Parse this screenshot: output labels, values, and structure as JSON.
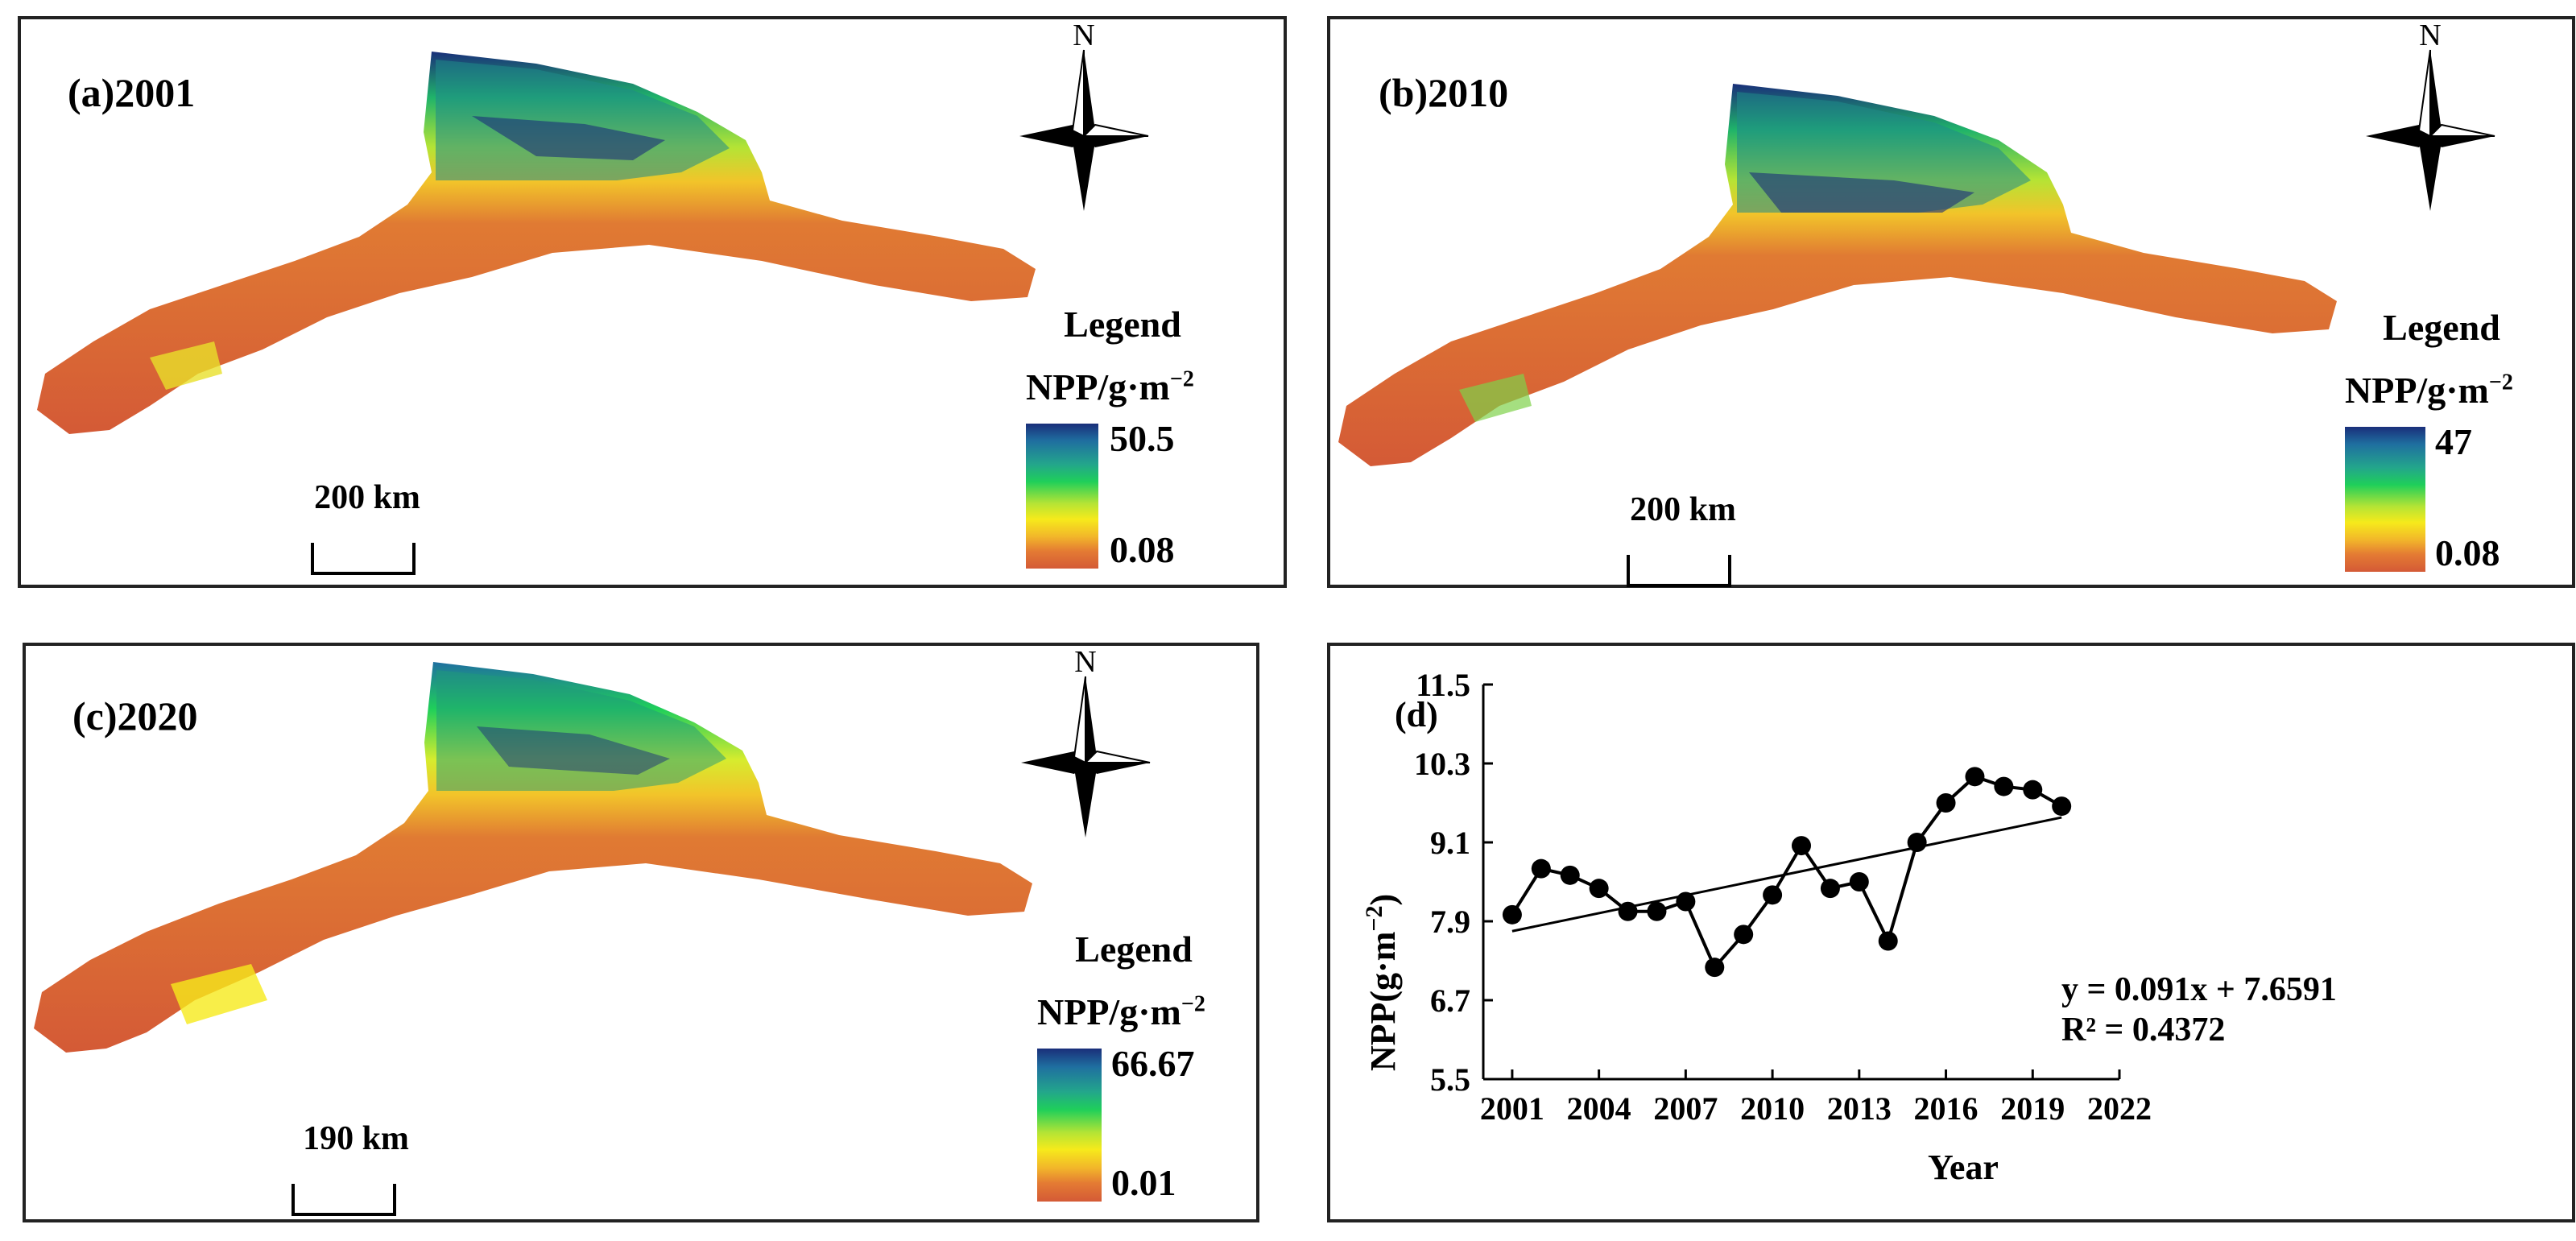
{
  "panels": {
    "a": {
      "title": "(a)2001",
      "north": "N",
      "legend_title": "Legend",
      "legend_unit": "NPP/g·m",
      "legend_unit_exp": "−2",
      "legend_max": "50.5",
      "legend_min": "0.08",
      "scale_label": "200  km"
    },
    "b": {
      "title": "(b)2010",
      "north": "N",
      "legend_title": "Legend",
      "legend_unit": "NPP/g·m",
      "legend_unit_exp": "−2",
      "legend_max": "47",
      "legend_min": "0.08",
      "scale_label": "200  km"
    },
    "c": {
      "title": "(c)2020",
      "north": "N",
      "legend_title": "Legend",
      "legend_unit": "NPP/g·m",
      "legend_unit_exp": "−2",
      "legend_max": "66.67",
      "legend_min": "0.01",
      "scale_label": "190  km"
    }
  },
  "colors": {
    "npp_high": "#1a2f7a",
    "npp_mid": "#1fcf5a",
    "npp_low_mid": "#f6ea1b",
    "npp_low": "#d45a36",
    "frame": "#222222"
  },
  "chart_data": {
    "type": "line",
    "panel_label": "(d)",
    "xlabel": "Year",
    "ylabel": "NPP(g·m",
    "ylabel_exp": "−2",
    "ylabel_close": ")",
    "xlim": [
      2000,
      2022
    ],
    "ylim": [
      5.5,
      11.5
    ],
    "xticks": [
      2001,
      2004,
      2007,
      2010,
      2013,
      2016,
      2019,
      2022
    ],
    "yticks": [
      "5.5",
      "6.7",
      "7.9",
      "9.1",
      "10.3",
      "11.5"
    ],
    "grid": false,
    "series": [
      {
        "x": [
          2001,
          2002,
          2003,
          2004,
          2005,
          2006,
          2007,
          2008,
          2009,
          2010,
          2011,
          2012,
          2013,
          2014,
          2015,
          2016,
          2017,
          2018,
          2019,
          2020
        ],
        "values": [
          8.0,
          8.7,
          8.6,
          8.4,
          8.05,
          8.05,
          8.2,
          7.2,
          7.7,
          8.3,
          9.05,
          8.4,
          8.5,
          7.6,
          9.1,
          9.7,
          10.1,
          9.95,
          9.9,
          9.65
        ]
      }
    ],
    "trendline": {
      "slope": 0.091,
      "intercept": 7.6591,
      "x_start": 2001,
      "x_end": 2020
    },
    "equation": "y = 0.091x + 7.6591",
    "r_squared": "R² = 0.4372"
  }
}
